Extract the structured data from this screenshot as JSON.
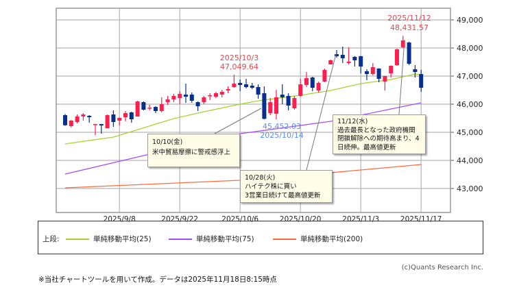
{
  "chart_data": {
    "type": "candlestick",
    "title": "",
    "ylim": [
      42150,
      49400
    ],
    "yticks": [
      "43,000",
      "44,000",
      "45,000",
      "46,000",
      "47,000",
      "48,000",
      "49,000"
    ],
    "ytick_values": [
      43000,
      44000,
      45000,
      46000,
      47000,
      48000,
      49000
    ],
    "xticks": [
      {
        "idx": 9,
        "label": "2025/9/8"
      },
      {
        "idx": 19,
        "label": "2025/9/22"
      },
      {
        "idx": 29,
        "label": "2025/10/6"
      },
      {
        "idx": 39,
        "label": "2025/10/20"
      },
      {
        "idx": 49,
        "label": "2025/11/3"
      },
      {
        "idx": 59,
        "label": "2025/11/17"
      }
    ],
    "colors": {
      "up": "#ff1f4f",
      "down": "#062f8f",
      "ma25": "#a7d42c",
      "ma75": "#a64cff",
      "ma200": "#ff6a3c",
      "grid": "#b4b4b4",
      "high_label": "#e0474c",
      "low_label": "#5a8cf0"
    },
    "candles": [
      [
        "8/25",
        45610,
        45650,
        45230,
        45250
      ],
      [
        "8/26",
        45220,
        45439,
        45171,
        45415
      ],
      [
        "8/27",
        45366,
        45634,
        45317,
        45561
      ],
      [
        "8/28",
        45561,
        45683,
        45415,
        45634
      ],
      [
        "8/29",
        45585,
        45610,
        45341,
        45537
      ],
      [
        "9/2",
        45270,
        45300,
        44902,
        45293
      ],
      [
        "9/3",
        45293,
        45300,
        44951,
        45244
      ],
      [
        "9/4",
        45146,
        45634,
        45146,
        45610
      ],
      [
        "9/5",
        45634,
        45780,
        45195,
        45366
      ],
      [
        "9/8",
        45415,
        45537,
        45244,
        45512
      ],
      [
        "9/9",
        45537,
        45756,
        45390,
        45683
      ],
      [
        "9/10",
        45707,
        45732,
        45341,
        45463
      ],
      [
        "9/11",
        45561,
        46122,
        45561,
        46098
      ],
      [
        "9/12",
        46073,
        46098,
        45780,
        45805
      ],
      [
        "9/15",
        45854,
        45976,
        45780,
        45878
      ],
      [
        "9/16",
        45902,
        45927,
        45683,
        45756
      ],
      [
        "9/17",
        45756,
        46244,
        45707,
        46000
      ],
      [
        "9/18",
        46073,
        46293,
        45976,
        46171
      ],
      [
        "9/19",
        46171,
        46366,
        46073,
        46293
      ],
      [
        "9/22",
        46220,
        46463,
        46000,
        46366
      ],
      [
        "9/23",
        46341,
        46732,
        46049,
        46268
      ],
      [
        "9/24",
        46341,
        46415,
        46049,
        46122
      ],
      [
        "9/25",
        46073,
        46098,
        45756,
        45927
      ],
      [
        "9/26",
        46073,
        46293,
        46000,
        46244
      ],
      [
        "9/29",
        46293,
        46390,
        46146,
        46317
      ],
      [
        "9/30",
        46268,
        46439,
        46220,
        46390
      ],
      [
        "10/1",
        46341,
        46512,
        46244,
        46439
      ],
      [
        "10/2",
        46488,
        46634,
        46390,
        46537
      ],
      [
        "10/3",
        46610,
        47049.64,
        46585,
        46732
      ],
      [
        "10/6",
        46756,
        46878,
        46463,
        46683
      ],
      [
        "10/7",
        46707,
        46902,
        46561,
        46610
      ],
      [
        "10/8",
        46659,
        46756,
        46537,
        46585
      ],
      [
        "10/9",
        46610,
        46707,
        46195,
        46341
      ],
      [
        "10/10",
        46390,
        46634,
        45460,
        45479
      ],
      [
        "10/13",
        45683,
        46220,
        45610,
        46073
      ],
      [
        "10/14",
        45659,
        46512,
        45452.03,
        46244
      ],
      [
        "10/15",
        46341,
        46707,
        46000,
        46244
      ],
      [
        "10/16",
        46293,
        46390,
        45780,
        45951
      ],
      [
        "10/17",
        45854,
        46293,
        45805,
        46220
      ],
      [
        "10/20",
        46293,
        46902,
        46268,
        46707
      ],
      [
        "10/21",
        46683,
        47146,
        46610,
        46927
      ],
      [
        "10/22",
        46951,
        46976,
        46463,
        46585
      ],
      [
        "10/23",
        46488,
        46805,
        46415,
        46756
      ],
      [
        "10/24",
        46805,
        47268,
        46780,
        47220
      ],
      [
        "10/27",
        47415,
        47585,
        47415,
        47561
      ],
      [
        "10/28",
        47780,
        47927,
        47659,
        47707
      ],
      [
        "10/29",
        47756,
        48049,
        47463,
        47634
      ],
      [
        "10/30",
        47463,
        48024,
        47415,
        47512
      ],
      [
        "10/31",
        47683,
        47707,
        47341,
        47561
      ],
      [
        "11/3",
        47707,
        47720,
        47098,
        47341
      ],
      [
        "11/4",
        47171,
        47244,
        46854,
        47073
      ],
      [
        "11/5",
        47073,
        47463,
        47024,
        47317
      ],
      [
        "11/6",
        47268,
        47280,
        46780,
        46902
      ],
      [
        "11/7",
        46805,
        47010,
        46488,
        47000
      ],
      [
        "11/10",
        47098,
        47380,
        46951,
        47366
      ],
      [
        "11/11",
        47390,
        47976,
        47366,
        47951
      ],
      [
        "11/12",
        48024,
        48431.57,
        48000,
        48268
      ],
      [
        "11/13",
        48195,
        48220,
        47390,
        47439
      ],
      [
        "11/14",
        47244,
        47390,
        46951,
        47146
      ],
      [
        "11/17",
        47073,
        47220,
        46439,
        46585
      ]
    ],
    "series": [
      {
        "name": "単純移動平均(25)",
        "key": "ma25",
        "points": [
          [
            0,
            44585
          ],
          [
            8,
            44830
          ],
          [
            18,
            45488
          ],
          [
            23,
            45732
          ],
          [
            29,
            46000
          ],
          [
            32,
            46122
          ],
          [
            39,
            46317
          ],
          [
            44,
            46488
          ],
          [
            49,
            46732
          ],
          [
            54,
            46878
          ],
          [
            58,
            47073
          ],
          [
            59,
            47050
          ]
        ]
      },
      {
        "name": "単純移動平均(75)",
        "key": "ma75",
        "points": [
          [
            0,
            43512
          ],
          [
            13,
            44171
          ],
          [
            29,
            44951
          ],
          [
            44,
            45390
          ],
          [
            59,
            46049
          ]
        ]
      },
      {
        "name": "単純移動平均(200)",
        "key": "ma200",
        "points": [
          [
            0,
            43024
          ],
          [
            29,
            43293
          ],
          [
            44,
            43561
          ],
          [
            59,
            43854
          ]
        ]
      }
    ],
    "annotations": {
      "high1": {
        "date": "2025/10/3",
        "value": "47,049.64"
      },
      "high2": {
        "date": "2025/11/12",
        "value": "48,431.57"
      },
      "low1": {
        "value": "45,452.03",
        "date": "2025/10/14"
      },
      "note1": {
        "title": "10/10(金)",
        "lines": [
          "米中貿易摩擦に警戒感浮上"
        ]
      },
      "note2": {
        "title": "10/28(火)",
        "lines": [
          "ハイテク株に買い",
          "3営業日続けて最高値更新"
        ]
      },
      "note3": {
        "title": "11/12(水)",
        "lines": [
          "過去最長となった政府機関",
          "閉鎖解除への期待高まり、4",
          "日続伸。最高値更新"
        ]
      }
    },
    "legend": {
      "prefix": "上段:",
      "placement": "bottom"
    }
  },
  "copyright": "(c)Quants Research Inc.",
  "footnote": "※当社チャートツールを用いて作成。データは2025年11月18日8:15時点"
}
